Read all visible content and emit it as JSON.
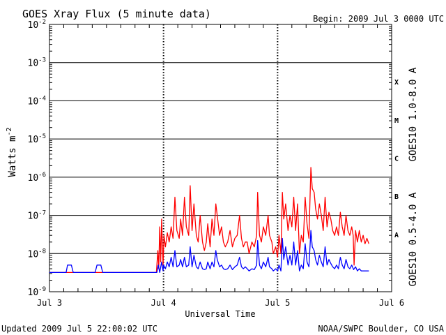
{
  "chart_data": {
    "type": "line",
    "title": "GOES Xray Flux (5 minute data)",
    "begin_label": "Begin:  2009 Jul 3 0000 UTC",
    "xlabel": "Universal Time",
    "ylabel": "Watts m",
    "ylabel_superscript": "-2",
    "yscale": "log",
    "ylim": [
      1e-09,
      0.01
    ],
    "y_ticks": [
      {
        "base": "10",
        "exp": "-2",
        "value": 0.01
      },
      {
        "base": "10",
        "exp": "-3",
        "value": 0.001
      },
      {
        "base": "10",
        "exp": "-4",
        "value": 0.0001
      },
      {
        "base": "10",
        "exp": "-5",
        "value": 1e-05
      },
      {
        "base": "10",
        "exp": "-6",
        "value": 1e-06
      },
      {
        "base": "10",
        "exp": "-7",
        "value": 1e-07
      },
      {
        "base": "10",
        "exp": "-8",
        "value": 1e-08
      },
      {
        "base": "10",
        "exp": "-9",
        "value": 1e-09
      }
    ],
    "xlim": [
      0,
      72
    ],
    "x_ticks": [
      {
        "label": "Jul 3",
        "hour": 0
      },
      {
        "label": "Jul 4",
        "hour": 24
      },
      {
        "label": "Jul 5",
        "hour": 48
      },
      {
        "label": "Jul 6",
        "hour": 72
      }
    ],
    "flare_classes": [
      {
        "label": "X",
        "value": 0.000316
      },
      {
        "label": "M",
        "value": 3.16e-05
      },
      {
        "label": "C",
        "value": 3.16e-06
      },
      {
        "label": "B",
        "value": 3.16e-07
      },
      {
        "label": "A",
        "value": 3.16e-08
      }
    ],
    "series": [
      {
        "name": "GOES10 1.0-8.0 A",
        "color": "#ff0000",
        "points": [
          [
            0,
            3.2e-09
          ],
          [
            22.5,
            3.2e-09
          ],
          [
            22.8,
            1.2e-08
          ],
          [
            23.0,
            4e-09
          ],
          [
            23.2,
            5e-08
          ],
          [
            23.4,
            6e-09
          ],
          [
            23.6,
            8e-08
          ],
          [
            23.9,
            5e-09
          ],
          [
            24.1,
            3e-08
          ],
          [
            24.4,
            1.5e-08
          ],
          [
            24.8,
            3.5e-08
          ],
          [
            25.2,
            2e-08
          ],
          [
            25.6,
            5e-08
          ],
          [
            26.0,
            2.5e-08
          ],
          [
            26.4,
            3e-07
          ],
          [
            26.8,
            4e-08
          ],
          [
            27.3,
            2.5e-08
          ],
          [
            27.6,
            8e-08
          ],
          [
            28.0,
            3e-08
          ],
          [
            28.4,
            3e-07
          ],
          [
            28.8,
            5e-08
          ],
          [
            29.3,
            3e-08
          ],
          [
            29.6,
            6e-07
          ],
          [
            30.0,
            4e-08
          ],
          [
            30.4,
            2e-07
          ],
          [
            30.9,
            3e-08
          ],
          [
            31.3,
            2e-08
          ],
          [
            31.7,
            1e-07
          ],
          [
            32.2,
            2e-08
          ],
          [
            32.6,
            1.2e-08
          ],
          [
            33.0,
            2e-08
          ],
          [
            33.3,
            6e-08
          ],
          [
            33.8,
            1.5e-08
          ],
          [
            34.2,
            8e-08
          ],
          [
            34.6,
            3e-08
          ],
          [
            35.0,
            2e-07
          ],
          [
            35.3,
            1e-07
          ],
          [
            35.8,
            3e-08
          ],
          [
            36.2,
            5e-08
          ],
          [
            36.6,
            2e-08
          ],
          [
            37.0,
            1.5e-08
          ],
          [
            37.5,
            2e-08
          ],
          [
            38.0,
            4e-08
          ],
          [
            38.5,
            1.5e-08
          ],
          [
            39.0,
            2.5e-08
          ],
          [
            39.5,
            3e-08
          ],
          [
            40.0,
            1e-07
          ],
          [
            40.4,
            2.5e-08
          ],
          [
            40.8,
            1.5e-08
          ],
          [
            41.2,
            2e-08
          ],
          [
            41.6,
            2e-08
          ],
          [
            42.0,
            1e-08
          ],
          [
            42.6,
            2e-08
          ],
          [
            43.1,
            1.5e-08
          ],
          [
            43.6,
            3e-08
          ],
          [
            43.8,
            4e-07
          ],
          [
            44.2,
            3e-08
          ],
          [
            44.6,
            2e-08
          ],
          [
            45.0,
            5e-08
          ],
          [
            45.5,
            3e-08
          ],
          [
            46.0,
            1e-07
          ],
          [
            46.3,
            3e-08
          ],
          [
            46.8,
            2e-08
          ],
          [
            47.1,
            1e-08
          ],
          [
            47.6,
            1.5e-08
          ],
          [
            48.0,
            8e-09
          ],
          [
            48.3,
            3e-08
          ],
          [
            48.7,
            1e-08
          ],
          [
            49.0,
            4e-07
          ],
          [
            49.3,
            8e-08
          ],
          [
            49.7,
            2e-07
          ],
          [
            50.2,
            4e-08
          ],
          [
            50.6,
            1e-07
          ],
          [
            51.0,
            5e-08
          ],
          [
            51.4,
            3e-07
          ],
          [
            51.8,
            4e-08
          ],
          [
            52.2,
            2e-07
          ],
          [
            52.6,
            1e-08
          ],
          [
            53.0,
            3e-08
          ],
          [
            53.4,
            2e-08
          ],
          [
            53.8,
            3e-07
          ],
          [
            54.2,
            6e-08
          ],
          [
            54.6,
            2.5e-08
          ],
          [
            55.0,
            1.8e-06
          ],
          [
            55.3,
            5e-07
          ],
          [
            55.7,
            4e-07
          ],
          [
            56.0,
            1.5e-07
          ],
          [
            56.4,
            8e-08
          ],
          [
            56.8,
            2e-07
          ],
          [
            57.2,
            1e-07
          ],
          [
            57.6,
            4e-08
          ],
          [
            58.0,
            3e-07
          ],
          [
            58.4,
            5e-08
          ],
          [
            58.8,
            1.2e-07
          ],
          [
            59.2,
            8e-08
          ],
          [
            59.6,
            4e-08
          ],
          [
            60.0,
            3e-08
          ],
          [
            60.4,
            5e-08
          ],
          [
            60.8,
            3e-08
          ],
          [
            61.2,
            1.2e-07
          ],
          [
            61.6,
            5e-08
          ],
          [
            62.0,
            3e-08
          ],
          [
            62.4,
            1e-07
          ],
          [
            62.8,
            4e-08
          ],
          [
            63.2,
            3e-08
          ],
          [
            63.6,
            5e-08
          ],
          [
            63.9,
            3e-08
          ],
          [
            64.1,
            5e-09
          ],
          [
            64.4,
            4e-08
          ],
          [
            64.8,
            2e-08
          ],
          [
            65.2,
            4e-08
          ],
          [
            65.6,
            2e-08
          ],
          [
            66.0,
            3e-08
          ],
          [
            66.4,
            1.8e-08
          ],
          [
            66.8,
            2.5e-08
          ],
          [
            67.2,
            1.8e-08
          ]
        ]
      },
      {
        "name": "GOES10 0.5-4.0 A",
        "color": "#0000ff",
        "points": [
          [
            0,
            3.2e-09
          ],
          [
            3.5,
            3.2e-09
          ],
          [
            3.8,
            5e-09
          ],
          [
            4.6,
            5e-09
          ],
          [
            5.0,
            3.2e-09
          ],
          [
            9.6,
            3.2e-09
          ],
          [
            10.0,
            5e-09
          ],
          [
            10.8,
            5e-09
          ],
          [
            11.2,
            3.2e-09
          ],
          [
            22.6,
            3.2e-09
          ],
          [
            22.9,
            5e-09
          ],
          [
            23.2,
            3.2e-09
          ],
          [
            23.6,
            6e-09
          ],
          [
            23.9,
            3.5e-09
          ],
          [
            24.0,
            5e-09
          ],
          [
            24.4,
            4e-09
          ],
          [
            24.8,
            6e-09
          ],
          [
            25.2,
            4.5e-09
          ],
          [
            25.6,
            8e-09
          ],
          [
            26.0,
            4.5e-09
          ],
          [
            26.4,
            1.2e-08
          ],
          [
            26.8,
            4.5e-09
          ],
          [
            27.3,
            5e-09
          ],
          [
            27.6,
            7e-09
          ],
          [
            28.0,
            4.5e-09
          ],
          [
            28.4,
            8e-09
          ],
          [
            28.8,
            4.5e-09
          ],
          [
            29.3,
            5e-09
          ],
          [
            29.6,
            1.5e-08
          ],
          [
            30.0,
            4.5e-09
          ],
          [
            30.4,
            9e-09
          ],
          [
            30.9,
            4.5e-09
          ],
          [
            31.3,
            4e-09
          ],
          [
            31.7,
            6e-09
          ],
          [
            32.2,
            4e-09
          ],
          [
            32.6,
            3.8e-09
          ],
          [
            33.0,
            4e-09
          ],
          [
            33.3,
            6e-09
          ],
          [
            33.8,
            4e-09
          ],
          [
            34.2,
            6e-09
          ],
          [
            34.6,
            4.5e-09
          ],
          [
            35.0,
            1.2e-08
          ],
          [
            35.3,
            7e-09
          ],
          [
            35.8,
            4.5e-09
          ],
          [
            36.2,
            5e-09
          ],
          [
            36.6,
            4e-09
          ],
          [
            37.0,
            3.8e-09
          ],
          [
            37.5,
            4e-09
          ],
          [
            38.0,
            5e-09
          ],
          [
            38.5,
            3.8e-09
          ],
          [
            39.0,
            4.5e-09
          ],
          [
            39.5,
            5e-09
          ],
          [
            40.0,
            8e-09
          ],
          [
            40.4,
            4.5e-09
          ],
          [
            40.8,
            4e-09
          ],
          [
            41.2,
            4.5e-09
          ],
          [
            41.6,
            4e-09
          ],
          [
            42.0,
            3.5e-09
          ],
          [
            42.6,
            4e-09
          ],
          [
            43.1,
            3.8e-09
          ],
          [
            43.6,
            5e-09
          ],
          [
            43.8,
            2.2e-08
          ],
          [
            44.2,
            5e-09
          ],
          [
            44.6,
            4e-09
          ],
          [
            45.0,
            6e-09
          ],
          [
            45.5,
            4.5e-09
          ],
          [
            46.0,
            8e-09
          ],
          [
            46.3,
            4.5e-09
          ],
          [
            46.8,
            4e-09
          ],
          [
            47.1,
            3.5e-09
          ],
          [
            47.6,
            4e-09
          ],
          [
            48.0,
            3.5e-09
          ],
          [
            48.3,
            5e-09
          ],
          [
            48.7,
            3.5e-09
          ],
          [
            49.0,
            2.5e-08
          ],
          [
            49.3,
            7e-09
          ],
          [
            49.7,
            1.5e-08
          ],
          [
            50.2,
            5e-09
          ],
          [
            50.6,
            9e-09
          ],
          [
            51.0,
            5e-09
          ],
          [
            51.4,
            2e-08
          ],
          [
            51.8,
            5e-09
          ],
          [
            52.2,
            1.2e-08
          ],
          [
            52.6,
            3.5e-09
          ],
          [
            53.0,
            5e-09
          ],
          [
            53.4,
            4e-09
          ],
          [
            53.8,
            1.8e-08
          ],
          [
            54.2,
            6e-09
          ],
          [
            54.6,
            4.5e-09
          ],
          [
            55.0,
            4e-08
          ],
          [
            55.3,
            1.5e-08
          ],
          [
            55.7,
            1.2e-08
          ],
          [
            56.0,
            7e-09
          ],
          [
            56.4,
            5e-09
          ],
          [
            56.8,
            9e-09
          ],
          [
            57.2,
            6e-09
          ],
          [
            57.6,
            4.5e-09
          ],
          [
            58.0,
            1.5e-08
          ],
          [
            58.4,
            5e-09
          ],
          [
            58.8,
            7e-09
          ],
          [
            59.2,
            5.5e-09
          ],
          [
            59.6,
            4.5e-09
          ],
          [
            60.0,
            4e-09
          ],
          [
            60.4,
            5e-09
          ],
          [
            60.8,
            4e-09
          ],
          [
            61.2,
            8e-09
          ],
          [
            61.6,
            5e-09
          ],
          [
            62.0,
            4e-09
          ],
          [
            62.4,
            7e-09
          ],
          [
            62.8,
            4.5e-09
          ],
          [
            63.2,
            4e-09
          ],
          [
            63.6,
            5e-09
          ],
          [
            64.0,
            3.8e-09
          ],
          [
            64.4,
            4.5e-09
          ],
          [
            64.8,
            3.5e-09
          ],
          [
            65.2,
            4e-09
          ],
          [
            65.6,
            3.5e-09
          ],
          [
            67.2,
            3.5e-09
          ]
        ]
      }
    ],
    "footer_left": "Updated 2009 Jul  5 22:00:02 UTC",
    "footer_right": "NOAA/SWPC Boulder, CO USA"
  }
}
